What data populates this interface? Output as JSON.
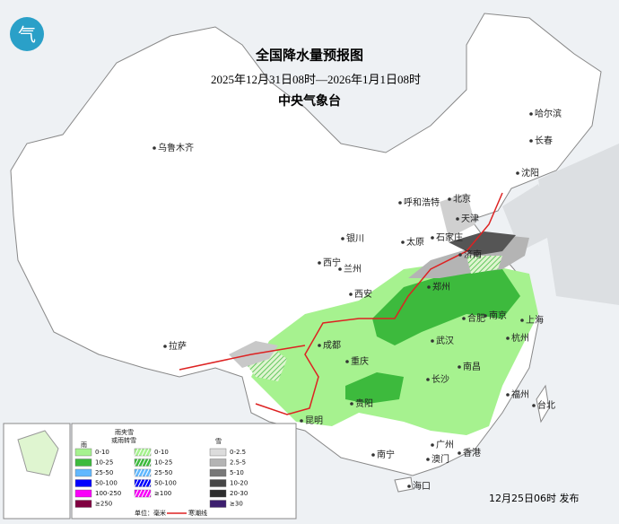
{
  "header": {
    "title": "全国降水量预报图",
    "period": "2025年12月31日08时—2026年1月1日08时",
    "agency": "中央气象台"
  },
  "cities": [
    "乌鲁木齐",
    "哈尔滨",
    "长春",
    "沈阳",
    "北京",
    "天津",
    "呼和浩特",
    "石家庄",
    "太原",
    "银川",
    "济南",
    "西宁",
    "兰州",
    "郑州",
    "西安",
    "合肥",
    "南京",
    "上海",
    "成都",
    "武汉",
    "杭州",
    "拉萨",
    "重庆",
    "长沙",
    "南昌",
    "福州",
    "贵阳",
    "台北",
    "昆明",
    "广州",
    "南宁",
    "澳门",
    "香港",
    "海口"
  ],
  "legend": {
    "rain": {
      "title": "雨",
      "items": [
        {
          "label": "0-10",
          "color": "#a6f28f"
        },
        {
          "label": "10-25",
          "color": "#3dba3d"
        },
        {
          "label": "25-50",
          "color": "#61b8ff"
        },
        {
          "label": "50-100",
          "color": "#0000fe"
        },
        {
          "label": "100-250",
          "color": "#fa00fa"
        },
        {
          "label": "≥250",
          "color": "#800040"
        }
      ]
    },
    "sleet": {
      "title": [
        "雨夹雪",
        "或雨转雪"
      ],
      "items": [
        {
          "label": "0-10",
          "color": "#a6f28f"
        },
        {
          "label": "10-25",
          "color": "#3dba3d"
        },
        {
          "label": "25-50",
          "color": "#61b8ff"
        },
        {
          "label": "50-100",
          "color": "#0000fe"
        },
        {
          "label": "≥100",
          "color": "#fa00fa"
        }
      ]
    },
    "snow": {
      "title": "雪",
      "items": [
        {
          "label": "0-2.5",
          "color": "#dcdcdc"
        },
        {
          "label": "2.5-5",
          "color": "#b4b4b4"
        },
        {
          "label": "5-10",
          "color": "#787878"
        },
        {
          "label": "10-20",
          "color": "#464646"
        },
        {
          "label": "20-30",
          "color": "#2d2d2d"
        },
        {
          "label": "≥30",
          "color": "#3c1e6e"
        }
      ]
    },
    "unit": "单位：毫米",
    "cold_wave": "寒潮线"
  },
  "footer": {
    "published": "12月25日06时 发布"
  }
}
